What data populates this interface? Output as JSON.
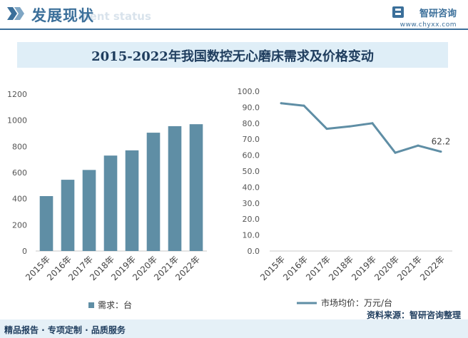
{
  "header": {
    "title": "发展现状",
    "subtitle": "ment status",
    "brand_name": "智研咨询",
    "brand_url": "www.chyxx.com"
  },
  "chart_title": "2015-2022年我国数控无心磨床需求及价格变动",
  "footer": {
    "services": "精品报告 · 专项定制 · 品质服务",
    "source": "资料来源：智研咨询整理"
  },
  "colors": {
    "primary": "#3b6f9a",
    "bar": "#5f8ea5",
    "line": "#5f8ea5",
    "title_band": "#dfeef7"
  },
  "chart_data": [
    {
      "type": "bar",
      "categories": [
        "2015年",
        "2016年",
        "2017年",
        "2018年",
        "2019年",
        "2020年",
        "2021年",
        "2022年"
      ],
      "series": [
        {
          "name": "需求：台",
          "values": [
            420,
            545,
            620,
            730,
            770,
            905,
            955,
            970
          ]
        }
      ],
      "ylim": [
        0,
        1200
      ],
      "yticks": [
        0,
        200,
        400,
        600,
        800,
        1000,
        1200
      ],
      "ytick_labels": [
        "0",
        "200",
        "400",
        "600",
        "800",
        "1000",
        "1200"
      ],
      "legend_position": "bottom",
      "grid": false
    },
    {
      "type": "line",
      "categories": [
        "2015年",
        "2016年",
        "2017年",
        "2018年",
        "2019年",
        "2020年",
        "2021年",
        "2022年"
      ],
      "series": [
        {
          "name": "市场均价：万元/台",
          "values": [
            92.5,
            91.0,
            76.5,
            78.0,
            80.0,
            61.5,
            66.0,
            62.2
          ]
        }
      ],
      "data_labels": [
        {
          "index": 7,
          "text": "62.2"
        }
      ],
      "ylim": [
        0,
        100
      ],
      "yticks": [
        0,
        10,
        20,
        30,
        40,
        50,
        60,
        70,
        80,
        90,
        100
      ],
      "ytick_labels": [
        "0.0",
        "10.0",
        "20.0",
        "30.0",
        "40.0",
        "50.0",
        "60.0",
        "70.0",
        "80.0",
        "90.0",
        "100.0"
      ],
      "legend_position": "bottom",
      "grid": false
    }
  ]
}
